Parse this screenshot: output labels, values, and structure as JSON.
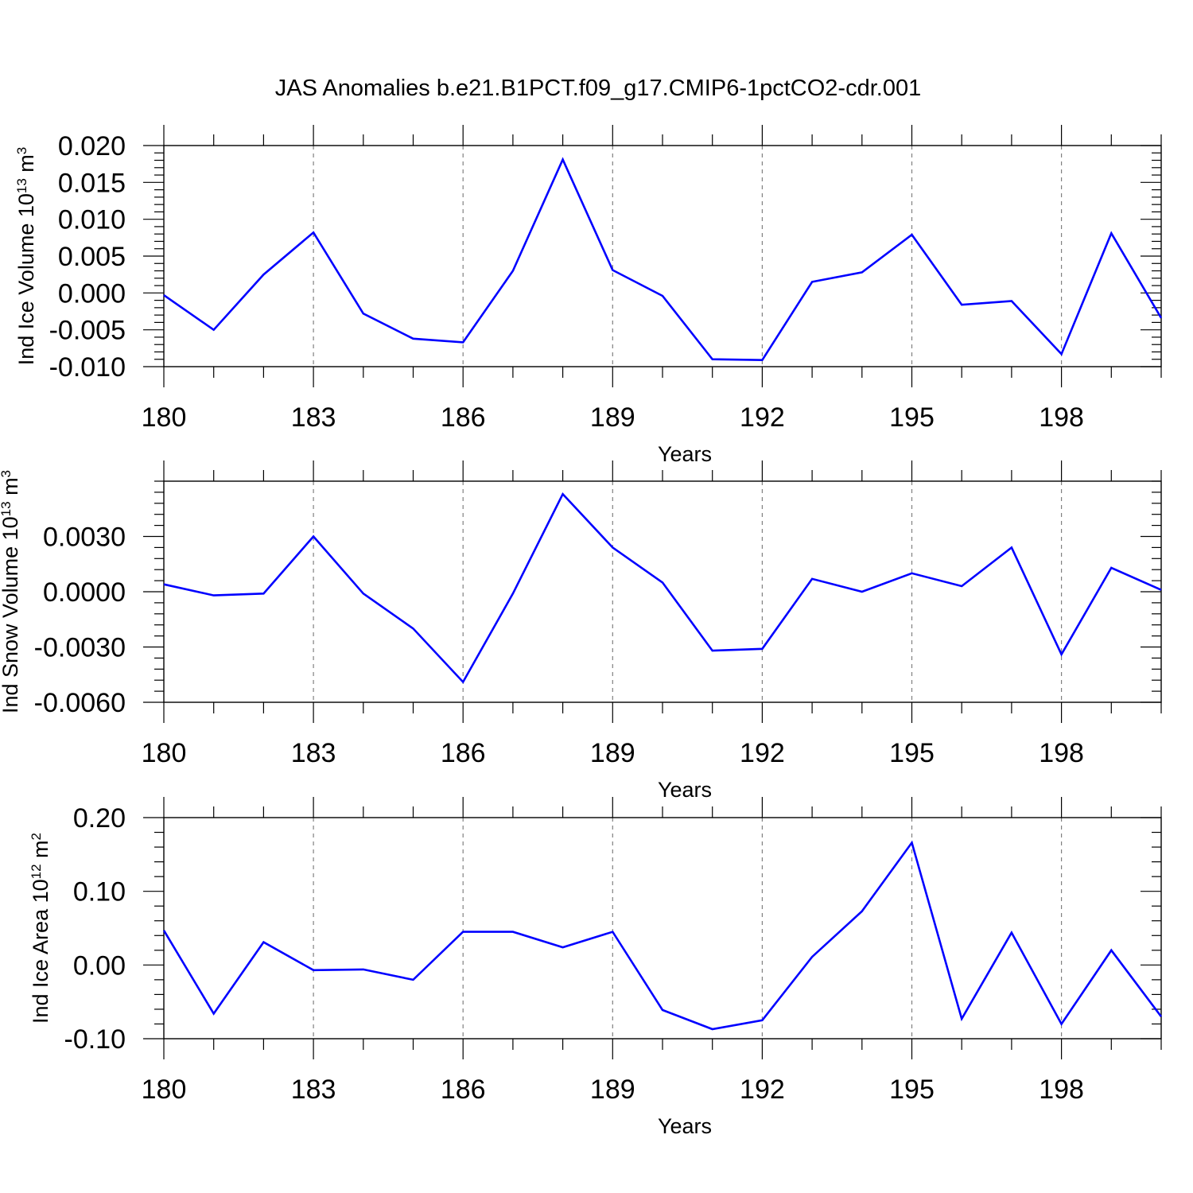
{
  "title": "JAS Anomalies b.e21.B1PCT.f09_g17.CMIP6-1pctCO2-cdr.001",
  "colors": {
    "line": "#0000ff",
    "axis": "#000000",
    "grid": "#808080"
  },
  "chart_data": [
    {
      "type": "line",
      "ylabel": {
        "text": "Ind Ice Volume 10",
        "exp": "13",
        "unit_pre": " m",
        "unit_exp": "3"
      },
      "xlabel": "Years",
      "x": [
        180,
        181,
        182,
        183,
        184,
        185,
        186,
        187,
        188,
        189,
        190,
        191,
        192,
        193,
        194,
        195,
        196,
        197,
        198,
        199,
        200
      ],
      "xlim": [
        180,
        200
      ],
      "xticks": [
        180,
        183,
        186,
        189,
        192,
        195,
        198
      ],
      "xtick_labels": [
        "180",
        "183",
        "186",
        "189",
        "192",
        "195",
        "198"
      ],
      "ylim": [
        -0.01,
        0.02
      ],
      "yticks": [
        -0.01,
        -0.005,
        0.0,
        0.005,
        0.01,
        0.015,
        0.02
      ],
      "ytick_labels": [
        "-0.010",
        "-0.005",
        "0.000",
        "0.005",
        "0.010",
        "0.015",
        "0.020"
      ],
      "series": [
        {
          "values": [
            -0.0003,
            -0.005,
            0.0025,
            0.0082,
            -0.0028,
            -0.0062,
            -0.0067,
            0.003,
            0.0181,
            0.0031,
            -0.0004,
            -0.009,
            -0.0091,
            0.0015,
            0.0028,
            0.0079,
            -0.0016,
            -0.0011,
            -0.0083,
            0.0081,
            -0.0034
          ]
        }
      ],
      "grid": "dashed vertical at major x ticks"
    },
    {
      "type": "line",
      "ylabel": {
        "text": "Ind Snow Volume 10",
        "exp": "13",
        "unit_pre": " m",
        "unit_exp": "3"
      },
      "xlabel": "Years",
      "x": [
        180,
        181,
        182,
        183,
        184,
        185,
        186,
        187,
        188,
        189,
        190,
        191,
        192,
        193,
        194,
        195,
        196,
        197,
        198,
        199,
        200
      ],
      "xlim": [
        180,
        200
      ],
      "xticks": [
        180,
        183,
        186,
        189,
        192,
        195,
        198
      ],
      "xtick_labels": [
        "180",
        "183",
        "186",
        "189",
        "192",
        "195",
        "198"
      ],
      "ylim": [
        -0.006,
        0.006
      ],
      "yticks": [
        -0.006,
        -0.003,
        0.0,
        0.003
      ],
      "ytick_labels": [
        "-0.0060",
        "-0.0030",
        "0.0000",
        "0.0030"
      ],
      "series": [
        {
          "values": [
            0.0004,
            -0.0002,
            -0.0001,
            0.003,
            -0.0001,
            -0.002,
            -0.0049,
            -0.0001,
            0.0053,
            0.0024,
            0.0005,
            -0.0032,
            -0.0031,
            0.0007,
            0.0,
            0.001,
            0.0003,
            0.0024,
            -0.0034,
            0.0013,
            0.0001
          ]
        }
      ],
      "grid": "dashed vertical at major x ticks"
    },
    {
      "type": "line",
      "ylabel": {
        "text": "Ind Ice Area 10",
        "exp": "12",
        "unit_pre": " m",
        "unit_exp": "2"
      },
      "xlabel": "Years",
      "x": [
        180,
        181,
        182,
        183,
        184,
        185,
        186,
        187,
        188,
        189,
        190,
        191,
        192,
        193,
        194,
        195,
        196,
        197,
        198,
        199,
        200
      ],
      "xlim": [
        180,
        200
      ],
      "xticks": [
        180,
        183,
        186,
        189,
        192,
        195,
        198
      ],
      "xtick_labels": [
        "180",
        "183",
        "186",
        "189",
        "192",
        "195",
        "198"
      ],
      "ylim": [
        -0.1,
        0.2
      ],
      "yticks": [
        -0.1,
        0.0,
        0.1,
        0.2
      ],
      "ytick_labels": [
        "-0.10",
        "0.00",
        "0.10",
        "0.20"
      ],
      "series": [
        {
          "values": [
            0.047,
            -0.066,
            0.031,
            -0.007,
            -0.006,
            -0.02,
            0.045,
            0.045,
            0.024,
            0.045,
            -0.061,
            -0.087,
            -0.075,
            0.011,
            0.073,
            0.166,
            -0.073,
            0.044,
            -0.08,
            0.02,
            -0.07
          ]
        }
      ],
      "grid": "dashed vertical at major x ticks"
    }
  ]
}
